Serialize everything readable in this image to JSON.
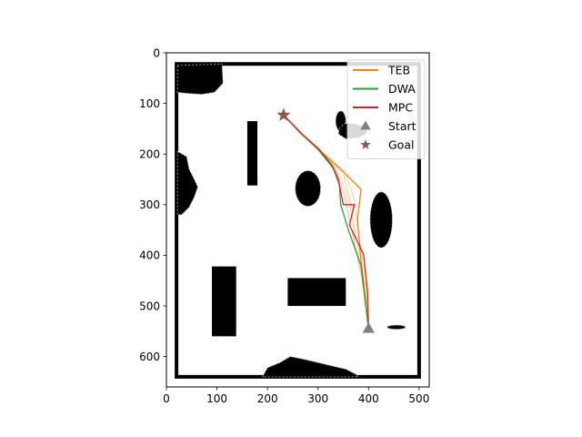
{
  "chart_data": {
    "type": "line",
    "title": "",
    "xlabel": "",
    "ylabel": "",
    "xlim": [
      0,
      520
    ],
    "ylim": [
      660,
      0
    ],
    "y_inverted": true,
    "grid": false,
    "legend_position": "upper-right",
    "xticks": [
      0,
      100,
      200,
      300,
      400,
      500
    ],
    "yticks": [
      0,
      100,
      200,
      300,
      400,
      500,
      600
    ],
    "map": {
      "wall_color": "#000000",
      "border": {
        "x0": 20,
        "y0": 22,
        "x1": 500,
        "y1": 640
      },
      "rect_obstacles": [
        {
          "x0": 160,
          "y0": 135,
          "x1": 180,
          "y1": 262
        },
        {
          "x0": 90,
          "y0": 422,
          "x1": 138,
          "y1": 560
        },
        {
          "x0": 240,
          "y0": 445,
          "x1": 355,
          "y1": 500
        }
      ],
      "ellipse_obstacles": [
        {
          "cx": 280,
          "cy": 268,
          "rx": 25,
          "ry": 35
        },
        {
          "cx": 425,
          "cy": 330,
          "rx": 22,
          "ry": 55
        },
        {
          "cx": 455,
          "cy": 542,
          "rx": 18,
          "ry": 4
        },
        {
          "cx": 345,
          "cy": 135,
          "rx": 10,
          "ry": 20
        }
      ],
      "blob_obstacles": [
        [
          [
            22,
            25
          ],
          [
            110,
            22
          ],
          [
            112,
            60
          ],
          [
            95,
            78
          ],
          [
            70,
            82
          ],
          [
            40,
            80
          ],
          [
            22,
            78
          ]
        ],
        [
          [
            22,
            195
          ],
          [
            40,
            205
          ],
          [
            45,
            230
          ],
          [
            55,
            250
          ],
          [
            62,
            265
          ],
          [
            55,
            285
          ],
          [
            45,
            305
          ],
          [
            30,
            320
          ],
          [
            22,
            320
          ]
        ],
        [
          [
            190,
            640
          ],
          [
            200,
            622
          ],
          [
            225,
            612
          ],
          [
            245,
            600
          ],
          [
            270,
            605
          ],
          [
            300,
            612
          ],
          [
            325,
            618
          ],
          [
            355,
            625
          ],
          [
            375,
            635
          ],
          [
            380,
            640
          ]
        ],
        [
          [
            340,
            160
          ],
          [
            355,
            170
          ],
          [
            380,
            168
          ],
          [
            395,
            160
          ],
          [
            398,
            150
          ],
          [
            390,
            145
          ],
          [
            370,
            140
          ],
          [
            352,
            140
          ],
          [
            343,
            148
          ]
        ]
      ]
    },
    "series": [
      {
        "name": "TEB",
        "color": "#ff7f0e",
        "x": [
          232,
          265,
          300,
          340,
          385,
          378,
          384,
          392,
          400
        ],
        "y": [
          123,
          158,
          190,
          225,
          270,
          330,
          400,
          470,
          545
        ]
      },
      {
        "name": "DWA",
        "color": "#2ca02c",
        "x": [
          232,
          265,
          300,
          330,
          342,
          345,
          360,
          385,
          392,
          400
        ],
        "y": [
          123,
          158,
          190,
          228,
          260,
          300,
          350,
          420,
          480,
          545
        ]
      },
      {
        "name": "MPC",
        "color": "#d62728",
        "x": [
          232,
          268,
          302,
          328,
          340,
          350,
          372,
          362,
          390,
          398,
          400
        ],
        "y": [
          123,
          160,
          190,
          222,
          250,
          300,
          300,
          340,
          398,
          470,
          545
        ]
      }
    ],
    "faint_trajectories": [
      {
        "color": "#ffbb78",
        "x": [
          232,
          270,
          310,
          355,
          372,
          380,
          395,
          400
        ],
        "y": [
          123,
          162,
          198,
          240,
          290,
          360,
          450,
          545
        ]
      },
      {
        "color": "#ffbb78",
        "x": [
          232,
          265,
          302,
          345,
          362,
          378,
          395,
          400
        ],
        "y": [
          123,
          160,
          195,
          245,
          300,
          375,
          465,
          545
        ]
      },
      {
        "color": "#ffbb78",
        "x": [
          232,
          268,
          306,
          350,
          368,
          372,
          392,
          400
        ],
        "y": [
          123,
          161,
          196,
          238,
          310,
          380,
          470,
          545
        ]
      },
      {
        "color": "#ff9896",
        "x": [
          232,
          266,
          300,
          335,
          352,
          365,
          385,
          400
        ],
        "y": [
          123,
          159,
          191,
          230,
          280,
          345,
          430,
          545
        ]
      }
    ],
    "start": {
      "label": "Start",
      "x": 400,
      "y": 545,
      "color": "#7f7f7f"
    },
    "goal": {
      "label": "Goal",
      "x": 232,
      "y": 123,
      "color": "#8c564b"
    }
  }
}
